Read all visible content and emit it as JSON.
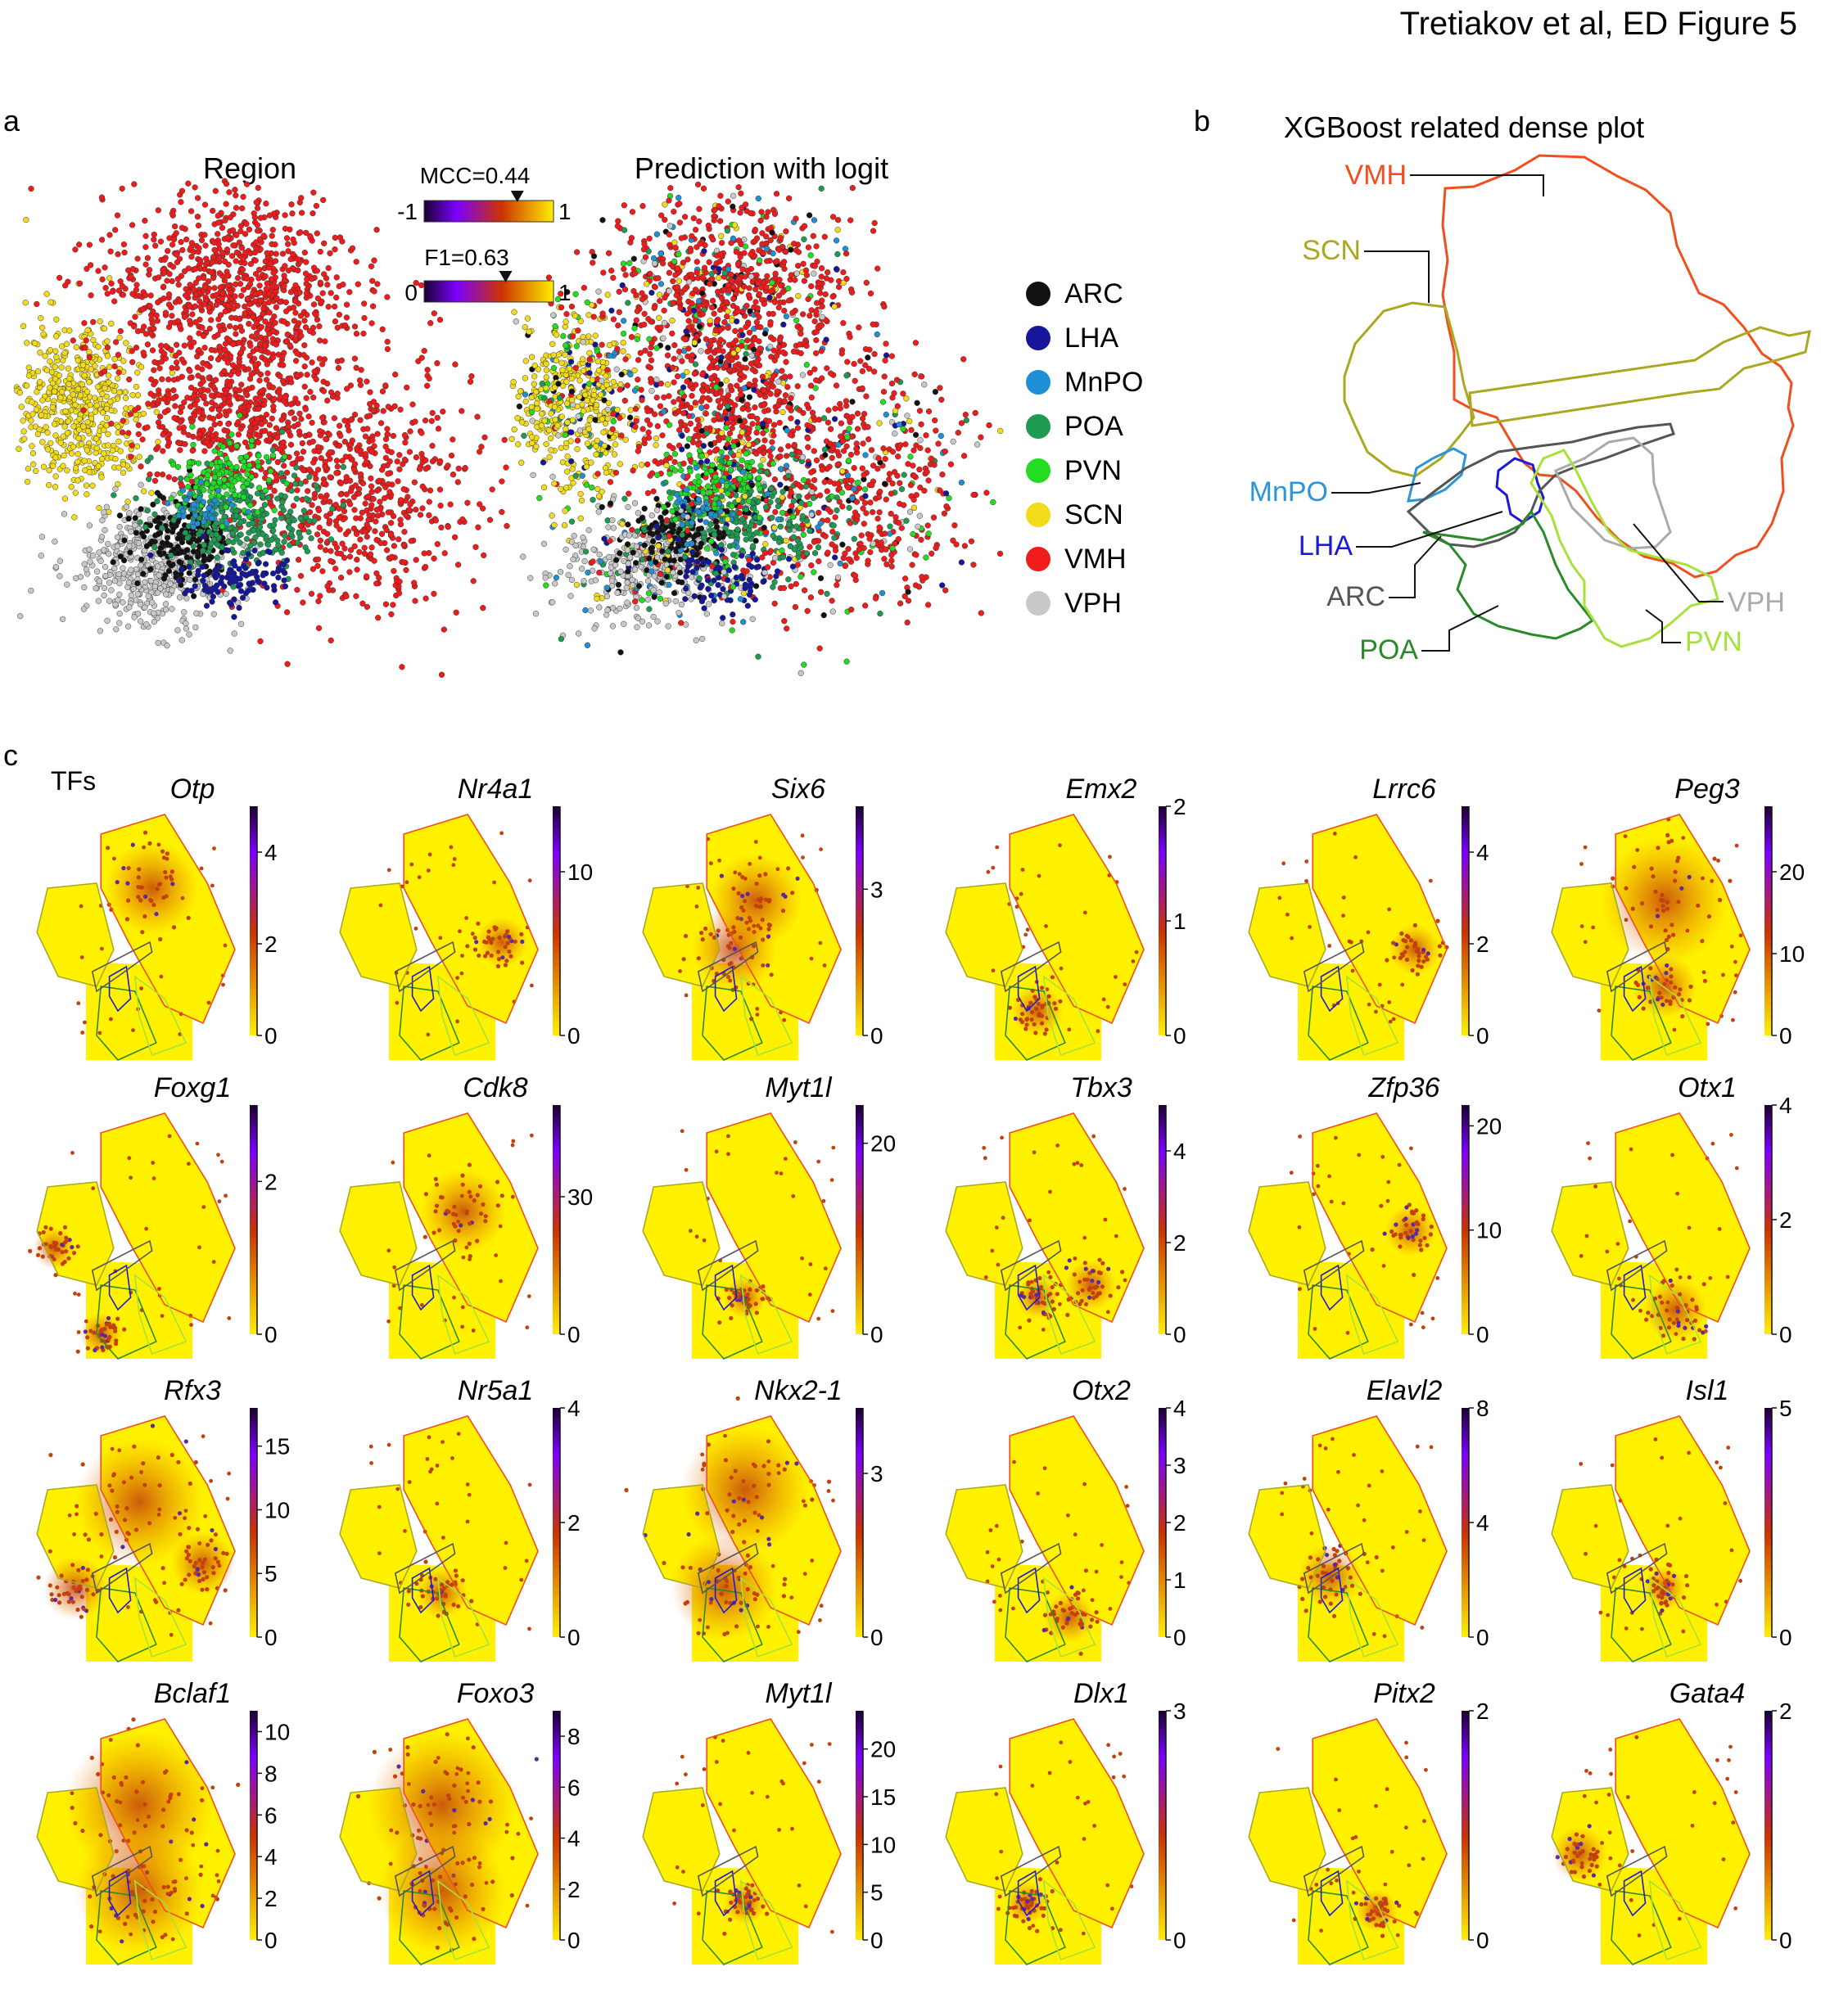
{
  "header": {
    "title": "Tretiakov et al, ED Figure 5"
  },
  "panel_a": {
    "label": "a",
    "left_title": "Region",
    "right_title": "Prediction with logit",
    "mcc": {
      "label": "MCC=0.44",
      "min": "-1",
      "max": "1",
      "value": 0.44,
      "range": [
        -1,
        1
      ]
    },
    "f1": {
      "label": "F1=0.63",
      "min": "0",
      "max": "1",
      "value": 0.63,
      "range": [
        0,
        1
      ]
    },
    "legend": [
      {
        "name": "ARC",
        "color": "#111111"
      },
      {
        "name": "LHA",
        "color": "#16169a"
      },
      {
        "name": "MnPO",
        "color": "#1f8fd6"
      },
      {
        "name": "POA",
        "color": "#1e9a52"
      },
      {
        "name": "PVN",
        "color": "#22dd22"
      },
      {
        "name": "SCN",
        "color": "#f2dc1a"
      },
      {
        "name": "VMH",
        "color": "#f01c1c"
      },
      {
        "name": "VPH",
        "color": "#c8c8c8"
      }
    ]
  },
  "panel_b": {
    "label": "b",
    "title": "XGBoost related dense plot",
    "regions": [
      {
        "name": "VMH",
        "color": "#f04e1e"
      },
      {
        "name": "SCN",
        "color": "#aaa820"
      },
      {
        "name": "MnPO",
        "color": "#2b95d6"
      },
      {
        "name": "LHA",
        "color": "#1a1ad8"
      },
      {
        "name": "ARC",
        "color": "#555555"
      },
      {
        "name": "POA",
        "color": "#2a8a2a"
      },
      {
        "name": "VPH",
        "color": "#aaaaaa"
      },
      {
        "name": "PVN",
        "color": "#a6e23a"
      }
    ]
  },
  "panel_c": {
    "label": "c",
    "subtitle": "TFs",
    "genes": [
      {
        "name": "Otp",
        "ticks": [
          "0",
          "2",
          "4"
        ],
        "max": 5,
        "hot": [
          [
            0.56,
            0.3,
            0.22
          ]
        ]
      },
      {
        "name": "Nr4a1",
        "ticks": [
          "0",
          "10"
        ],
        "max": 14,
        "hot": [
          [
            0.78,
            0.52,
            0.12
          ]
        ]
      },
      {
        "name": "Six6",
        "ticks": [
          "0",
          "3"
        ],
        "max": 4.7,
        "hot": [
          [
            0.55,
            0.35,
            0.22
          ],
          [
            0.45,
            0.55,
            0.2
          ]
        ]
      },
      {
        "name": "Emx2",
        "ticks": [
          "0",
          "1",
          "2"
        ],
        "max": 2,
        "hot": [
          [
            0.45,
            0.8,
            0.12
          ]
        ]
      },
      {
        "name": "Lrrc6",
        "ticks": [
          "0",
          "2",
          "4"
        ],
        "max": 5,
        "hot": [
          [
            0.8,
            0.55,
            0.12
          ]
        ]
      },
      {
        "name": "Peg3",
        "ticks": [
          "0",
          "10",
          "20"
        ],
        "max": 28,
        "hot": [
          [
            0.55,
            0.35,
            0.3
          ],
          [
            0.55,
            0.7,
            0.15
          ]
        ]
      },
      {
        "name": "Foxg1",
        "ticks": [
          "0",
          "2"
        ],
        "max": 3,
        "hot": [
          [
            0.1,
            0.55,
            0.1
          ],
          [
            0.32,
            0.9,
            0.1
          ]
        ]
      },
      {
        "name": "Cdk8",
        "ticks": [
          "0",
          "30"
        ],
        "max": 50,
        "hot": [
          [
            0.6,
            0.4,
            0.2
          ]
        ]
      },
      {
        "name": "Myt1l",
        "ticks": [
          "0",
          "20"
        ],
        "max": 24,
        "hot": [
          [
            0.5,
            0.75,
            0.1
          ]
        ]
      },
      {
        "name": "Tbx3",
        "ticks": [
          "0",
          "2",
          "4"
        ],
        "max": 5,
        "hot": [
          [
            0.7,
            0.7,
            0.12
          ],
          [
            0.45,
            0.75,
            0.1
          ]
        ]
      },
      {
        "name": "Zfp36",
        "ticks": [
          "0",
          "10",
          "20"
        ],
        "max": 22,
        "hot": [
          [
            0.78,
            0.48,
            0.12
          ]
        ]
      },
      {
        "name": "Otx1",
        "ticks": [
          "0",
          "2",
          "4"
        ],
        "max": 4,
        "hot": [
          [
            0.6,
            0.8,
            0.15
          ]
        ]
      },
      {
        "name": "Rfx3",
        "ticks": [
          "0",
          "5",
          "10",
          "15"
        ],
        "max": 18,
        "hot": [
          [
            0.5,
            0.35,
            0.3
          ],
          [
            0.2,
            0.7,
            0.15
          ],
          [
            0.8,
            0.6,
            0.15
          ]
        ]
      },
      {
        "name": "Nr5a1",
        "ticks": [
          "0",
          "2",
          "4"
        ],
        "max": 4,
        "hot": [
          [
            0.5,
            0.72,
            0.12
          ]
        ]
      },
      {
        "name": "Nkx2-1",
        "ticks": [
          "0",
          "3"
        ],
        "max": 4.2,
        "hot": [
          [
            0.5,
            0.3,
            0.3
          ],
          [
            0.4,
            0.7,
            0.25
          ]
        ]
      },
      {
        "name": "Otx2",
        "ticks": [
          "0",
          "1",
          "2",
          "3",
          "4"
        ],
        "max": 4,
        "hot": [
          [
            0.6,
            0.82,
            0.12
          ]
        ]
      },
      {
        "name": "Elavl2",
        "ticks": [
          "0",
          "4",
          "8"
        ],
        "max": 8,
        "hot": [
          [
            0.4,
            0.65,
            0.15
          ]
        ]
      },
      {
        "name": "Isl1",
        "ticks": [
          "0",
          "5"
        ],
        "max": 5,
        "hot": [
          [
            0.55,
            0.7,
            0.1
          ]
        ]
      },
      {
        "name": "Bclaf1",
        "ticks": [
          "0",
          "2",
          "4",
          "6",
          "8",
          "10"
        ],
        "max": 11,
        "hot": [
          [
            0.5,
            0.35,
            0.35
          ],
          [
            0.5,
            0.7,
            0.3
          ]
        ]
      },
      {
        "name": "Foxo3",
        "ticks": [
          "0",
          "2",
          "4",
          "6",
          "8"
        ],
        "max": 9,
        "hot": [
          [
            0.5,
            0.35,
            0.35
          ],
          [
            0.5,
            0.7,
            0.3
          ]
        ]
      },
      {
        "name": "Myt1l",
        "ticks": [
          "0",
          "5",
          "10",
          "15",
          "20"
        ],
        "max": 24,
        "hot": [
          [
            0.5,
            0.75,
            0.1
          ]
        ]
      },
      {
        "name": "Dlx1",
        "ticks": [
          "0",
          "3"
        ],
        "max": 3,
        "hot": [
          [
            0.4,
            0.75,
            0.1
          ]
        ]
      },
      {
        "name": "Pitx2",
        "ticks": [
          "0",
          "2"
        ],
        "max": 2,
        "hot": [
          [
            0.62,
            0.78,
            0.1
          ]
        ]
      },
      {
        "name": "Gata4",
        "ticks": [
          "0",
          "2"
        ],
        "max": 2,
        "hot": [
          [
            0.15,
            0.55,
            0.13
          ]
        ]
      }
    ]
  },
  "colors": {
    "expr_low": "#ffee00",
    "expr_mid": "#cc3300",
    "expr_high": "#7a00ff",
    "expr_top": "#1a0030"
  }
}
